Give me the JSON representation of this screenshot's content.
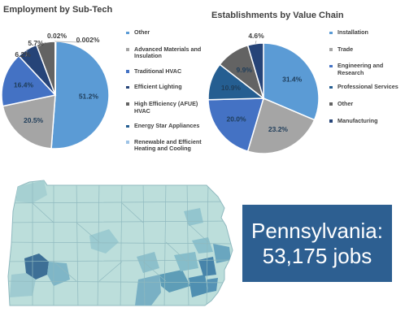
{
  "charts": [
    {
      "title": "Employment by Sub-Tech",
      "legend": [
        {
          "label": "Other",
          "color": "#5b9bd5"
        },
        {
          "label": "Advanced Materials and Insulation",
          "color": "#a5a5a5"
        },
        {
          "label": "Traditional HVAC",
          "color": "#4472c4"
        },
        {
          "label": "Efficient Lighting",
          "color": "#264478"
        },
        {
          "label": "High Efficiency (AFUE) HVAC",
          "color": "#636363"
        },
        {
          "label": "Energy Star Appliances",
          "color": "#255e91"
        },
        {
          "label": "Renewable and Efficient Heating and Cooling",
          "color": "#9dc3e6"
        }
      ]
    },
    {
      "title": "Establishments by Value Chain",
      "legend": [
        {
          "label": "Installation",
          "color": "#5b9bd5"
        },
        {
          "label": "Trade",
          "color": "#a5a5a5"
        },
        {
          "label": "Engineering and Research",
          "color": "#4472c4"
        },
        {
          "label": "Professional Services",
          "color": "#255e91"
        },
        {
          "label": "Other",
          "color": "#636363"
        },
        {
          "label": "Manufacturing",
          "color": "#264478"
        }
      ]
    }
  ],
  "chart_data": [
    {
      "type": "pie",
      "title": "Employment by Sub-Tech",
      "labels": [
        "Other",
        "Advanced Materials and Insulation",
        "Traditional HVAC",
        "Efficient Lighting",
        "High Efficiency (AFUE) HVAC",
        "Energy Star Appliances",
        "Renewable and Efficient Heating and Cooling"
      ],
      "values": [
        51.2,
        20.5,
        16.4,
        6.2,
        5.7,
        0.02,
        0.002
      ],
      "value_labels": [
        "51.2%",
        "20.5%",
        "16.4%",
        "6.2%",
        "5.7%",
        "0.02%",
        "0.002%"
      ],
      "legend_position": "right"
    },
    {
      "type": "pie",
      "title": "Establishments by Value Chain",
      "labels": [
        "Installation",
        "Trade",
        "Engineering and Research",
        "Professional Services",
        "Other",
        "Manufacturing"
      ],
      "values": [
        31.4,
        23.2,
        20.0,
        10.9,
        9.9,
        4.6
      ],
      "value_labels": [
        "31.4%",
        "23.2%",
        "20.0%",
        "10.9%",
        "9.9%",
        "4.6%"
      ],
      "legend_position": "right"
    }
  ],
  "callout": {
    "line1": "Pennsylvania:",
    "line2": "53,175 jobs"
  }
}
